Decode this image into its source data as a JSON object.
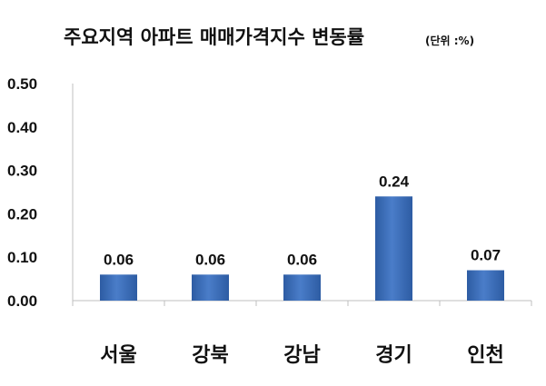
{
  "chart_data": {
    "type": "bar",
    "title": "주요지역 아파트 매매가격지수 변동률",
    "unit_label": "(단위 :%)",
    "xlabel": "",
    "ylabel": "",
    "categories": [
      "서울",
      "강북",
      "강남",
      "경기",
      "인천"
    ],
    "values": [
      0.06,
      0.06,
      0.06,
      0.24,
      0.07
    ],
    "data_labels": [
      "0.06",
      "0.06",
      "0.06",
      "0.24",
      "0.07"
    ],
    "ylim": [
      0,
      0.5
    ],
    "yticks": [
      "0.00",
      "0.10",
      "0.20",
      "0.30",
      "0.40",
      "0.50"
    ],
    "grid": false,
    "legend": "none",
    "bar_color": "#4a7dc9",
    "bar_color_dark": "#2d5ca3"
  }
}
